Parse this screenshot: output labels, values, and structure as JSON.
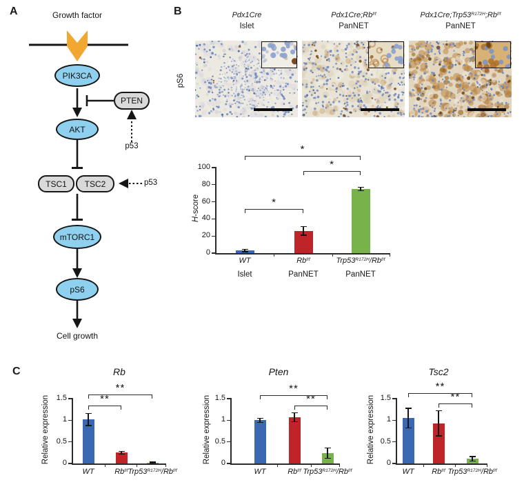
{
  "panels": {
    "a": {
      "label": "A",
      "nodes": {
        "growth_factor": "Growth factor",
        "pik3ca": "PIK3CA",
        "pten": "PTEN",
        "akt": "AKT",
        "p53_pten": "p53",
        "tsc1": "TSC1",
        "tsc2": "TSC2",
        "p53_tsc": "p53",
        "mtorc1": "mTORC1",
        "ps6": "pS6",
        "cell_growth": "Cell growth"
      }
    },
    "b": {
      "label": "B",
      "row_label": "pS6",
      "images": [
        {
          "genotype": [
            {
              "v": "Pdx1Cre"
            }
          ],
          "tissue": "Islet"
        },
        {
          "genotype": [
            {
              "v": "Pdx1Cre;Rb"
            },
            {
              "v": "f/f",
              "sup": true
            }
          ],
          "tissue": "PanNET"
        },
        {
          "genotype": [
            {
              "v": "Pdx1Cre;Trp53"
            },
            {
              "v": "R172H",
              "sup": true
            },
            {
              "v": ";Rb"
            },
            {
              "v": "f/f",
              "sup": true
            }
          ],
          "tissue": "PanNET"
        }
      ]
    },
    "c": {
      "label": "C"
    }
  },
  "chart_data": [
    {
      "id": "b-hscore",
      "type": "bar",
      "title": "",
      "ylabel_rich": [
        {
          "v": "H",
          "i": true
        },
        {
          "v": "-score"
        }
      ],
      "ylim": [
        0,
        100
      ],
      "yticks": [
        0,
        20,
        40,
        60,
        80,
        100
      ],
      "ytick_labels": [
        "0",
        "20",
        "40",
        "60",
        "80",
        "100"
      ],
      "categories_rich": [
        [
          {
            "v": "WT"
          }
        ],
        [
          {
            "v": "Rb"
          },
          {
            "v": "f/f",
            "sup": true
          }
        ],
        [
          {
            "v": "Trp53"
          },
          {
            "v": "R172H",
            "sup": true
          },
          {
            "v": "/Rb"
          },
          {
            "v": "f/f",
            "sup": true
          }
        ]
      ],
      "sublabels": [
        "Islet",
        "PanNET",
        "PanNET"
      ],
      "values": [
        3,
        26,
        75
      ],
      "errors": [
        1.5,
        5,
        2
      ],
      "color_keys": [
        "bar_blue",
        "bar_red",
        "bar_green"
      ],
      "significance": [
        {
          "a": 0,
          "b": 1,
          "label": "*",
          "y": 52
        },
        {
          "a": 1,
          "b": 2,
          "label": "*",
          "y": 96
        },
        {
          "a": 0,
          "b": 2,
          "label": "*",
          "y": 114
        }
      ]
    },
    {
      "id": "c-rb",
      "type": "bar",
      "title": "Rb",
      "ylabel": "Relative expression",
      "ylim": [
        0,
        1.5
      ],
      "yticks": [
        0,
        0.5,
        1,
        1.5
      ],
      "ytick_labels": [
        "0",
        "0.5",
        "1",
        "1.5"
      ],
      "categories_rich": [
        [
          {
            "v": "WT"
          }
        ],
        [
          {
            "v": "Rb"
          },
          {
            "v": "f/f",
            "sup": true
          }
        ],
        [
          {
            "v": "Trp53"
          },
          {
            "v": "R172H",
            "sup": true
          },
          {
            "v": "/Rb"
          },
          {
            "v": "f/f",
            "sup": true
          }
        ]
      ],
      "values": [
        1.02,
        0.25,
        0.02
      ],
      "errors": [
        0.14,
        0.03,
        0.01
      ],
      "color_keys": [
        "bar_blue",
        "bar_red",
        "bar_green"
      ],
      "significance": [
        {
          "a": 0,
          "b": 1,
          "label": "**",
          "y": 1.34
        },
        {
          "a": 0,
          "b": 2,
          "label": "**",
          "y": 1.6
        }
      ]
    },
    {
      "id": "c-pten",
      "type": "bar",
      "title": "Pten",
      "ylabel": "Relative expression",
      "ylim": [
        0,
        1.5
      ],
      "yticks": [
        0,
        0.5,
        1,
        1.5
      ],
      "ytick_labels": [
        "0",
        "0.5",
        "1",
        "1.5"
      ],
      "categories_rich": [
        [
          {
            "v": "WT"
          }
        ],
        [
          {
            "v": "Rb"
          },
          {
            "v": "f/f",
            "sup": true
          }
        ],
        [
          {
            "v": "Trp53"
          },
          {
            "v": "R172H",
            "sup": true
          },
          {
            "v": "/Rb"
          },
          {
            "v": "f/f",
            "sup": true
          }
        ]
      ],
      "values": [
        1.0,
        1.07,
        0.24
      ],
      "errors": [
        0.05,
        0.1,
        0.12
      ],
      "color_keys": [
        "bar_blue",
        "bar_red",
        "bar_green"
      ],
      "significance": [
        {
          "a": 1,
          "b": 2,
          "label": "**",
          "y": 1.34
        },
        {
          "a": 0,
          "b": 2,
          "label": "**",
          "y": 1.58
        }
      ]
    },
    {
      "id": "c-tsc2",
      "type": "bar",
      "title": "Tsc2",
      "ylabel": "Relative expression",
      "ylim": [
        0,
        1.5
      ],
      "yticks": [
        0,
        0.5,
        1,
        1.5
      ],
      "ytick_labels": [
        "0",
        "0.5",
        "1",
        "1.5"
      ],
      "categories_rich": [
        [
          {
            "v": "WT"
          }
        ],
        [
          {
            "v": "Rb"
          },
          {
            "v": "f/f",
            "sup": true
          }
        ],
        [
          {
            "v": "Trp53"
          },
          {
            "v": "R172H",
            "sup": true
          },
          {
            "v": "/Rb"
          },
          {
            "v": "f/f",
            "sup": true
          }
        ]
      ],
      "values": [
        1.05,
        0.93,
        0.11
      ],
      "errors": [
        0.23,
        0.29,
        0.05
      ],
      "color_keys": [
        "bar_blue",
        "bar_red",
        "bar_green"
      ],
      "significance": [
        {
          "a": 1,
          "b": 2,
          "label": "**",
          "y": 1.39
        },
        {
          "a": 0,
          "b": 2,
          "label": "**",
          "y": 1.63
        }
      ]
    }
  ],
  "colors": {
    "bar_blue": "#3A68B2",
    "bar_red": "#BE2428",
    "bar_green": "#77B34A",
    "node_blue": "#8FD0EE",
    "node_gray": "#D9D9D9",
    "membrane_arrow_orange": "#F2A733",
    "stain_hematoxylin_blue": "#7089BE",
    "stain_dab_brown": "#A96F2F",
    "tissue_background": "#EBE6DA"
  }
}
